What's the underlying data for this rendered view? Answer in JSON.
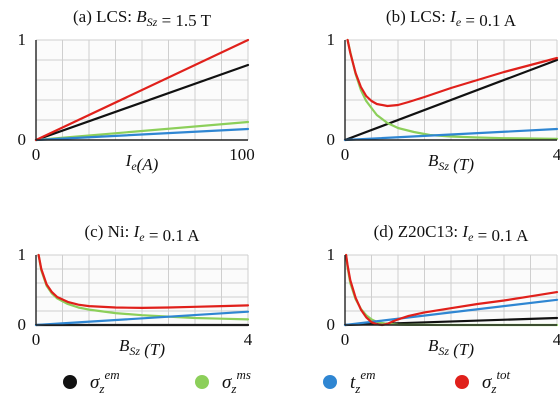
{
  "colors": {
    "sigma_em": "#111111",
    "sigma_ms": "#8ccf5a",
    "t_em": "#2f86d2",
    "sigma_tot": "#e0201b",
    "grid": "#cfcfcf"
  },
  "legend": {
    "position": "bottom",
    "items": [
      {
        "key": "sigma_em",
        "base": "σ",
        "sub": "z",
        "sup": "em"
      },
      {
        "key": "sigma_ms",
        "base": "σ",
        "sub": "z",
        "sup": "ms"
      },
      {
        "key": "t_em",
        "base": "t",
        "sub": "z",
        "sup": "em"
      },
      {
        "key": "sigma_tot",
        "base": "σ",
        "sub": "z",
        "sup": "tot"
      }
    ]
  },
  "chart_data": [
    {
      "type": "line",
      "title": "(a) LCS:  B_Sz = 1.5 T",
      "x_tick_labels": [
        "0",
        "100"
      ],
      "y_tick_labels": [
        "0",
        "1"
      ],
      "xlabel": "I_e(A)",
      "xlim": [
        0,
        100
      ],
      "ylim": [
        0,
        1
      ],
      "grid": true,
      "series": [
        {
          "key": "sigma_em",
          "x": [
            0,
            100
          ],
          "y": [
            0,
            0.75
          ]
        },
        {
          "key": "sigma_ms",
          "x": [
            0,
            100
          ],
          "y": [
            0,
            0.18
          ]
        },
        {
          "key": "t_em",
          "x": [
            0,
            100
          ],
          "y": [
            0,
            0.11
          ]
        },
        {
          "key": "sigma_tot",
          "x": [
            0,
            100
          ],
          "y": [
            0,
            1.0
          ]
        }
      ]
    },
    {
      "type": "line",
      "title": "(b) LCS: I_e = 0.1 A",
      "x_tick_labels": [
        "0",
        "4"
      ],
      "y_tick_labels": [
        "0",
        "1"
      ],
      "xlabel": "B_Sz (T)",
      "xlim": [
        0,
        4
      ],
      "ylim": [
        0,
        1
      ],
      "grid": true,
      "series": [
        {
          "key": "sigma_em",
          "x": [
            0,
            4
          ],
          "y": [
            0,
            0.8
          ]
        },
        {
          "key": "sigma_ms",
          "x": [
            0.05,
            0.1,
            0.2,
            0.3,
            0.4,
            0.6,
            0.8,
            1.0,
            1.3,
            1.6,
            2.0,
            2.5,
            3.0,
            3.5,
            4.0
          ],
          "y": [
            1.0,
            0.88,
            0.66,
            0.5,
            0.39,
            0.25,
            0.17,
            0.12,
            0.08,
            0.05,
            0.035,
            0.025,
            0.018,
            0.015,
            0.012
          ]
        },
        {
          "key": "t_em",
          "x": [
            0,
            4
          ],
          "y": [
            0,
            0.11
          ]
        },
        {
          "key": "sigma_tot",
          "x": [
            0.05,
            0.1,
            0.2,
            0.3,
            0.4,
            0.5,
            0.6,
            0.8,
            1.0,
            1.2,
            1.5,
            2.0,
            2.5,
            3.0,
            3.5,
            4.0
          ],
          "y": [
            1.0,
            0.87,
            0.67,
            0.53,
            0.44,
            0.39,
            0.36,
            0.34,
            0.35,
            0.38,
            0.43,
            0.52,
            0.6,
            0.68,
            0.75,
            0.82
          ]
        }
      ]
    },
    {
      "type": "line",
      "title": "(c) Ni: I_e = 0.1 A",
      "x_tick_labels": [
        "0",
        "4"
      ],
      "y_tick_labels": [
        "0",
        "1"
      ],
      "xlabel": "B_Sz (T)",
      "xlim": [
        0,
        4
      ],
      "ylim": [
        0,
        1
      ],
      "grid": true,
      "series": [
        {
          "key": "sigma_em",
          "x": [
            0,
            4
          ],
          "y": [
            0,
            0.0
          ]
        },
        {
          "key": "sigma_ms",
          "x": [
            0.05,
            0.1,
            0.2,
            0.3,
            0.4,
            0.6,
            0.8,
            1.0,
            1.5,
            2.0,
            2.5,
            3.0,
            3.5,
            4.0
          ],
          "y": [
            1.0,
            0.78,
            0.56,
            0.45,
            0.38,
            0.3,
            0.25,
            0.22,
            0.17,
            0.14,
            0.12,
            0.1,
            0.09,
            0.08
          ]
        },
        {
          "key": "t_em",
          "x": [
            0,
            4
          ],
          "y": [
            0,
            0.19
          ]
        },
        {
          "key": "sigma_tot",
          "x": [
            0.05,
            0.1,
            0.2,
            0.3,
            0.4,
            0.6,
            0.8,
            1.0,
            1.5,
            2.0,
            2.5,
            3.0,
            3.5,
            4.0
          ],
          "y": [
            1.0,
            0.8,
            0.58,
            0.47,
            0.4,
            0.33,
            0.29,
            0.27,
            0.25,
            0.245,
            0.25,
            0.26,
            0.27,
            0.28
          ]
        }
      ]
    },
    {
      "type": "line",
      "title": "(d) Z20C13: I_e = 0.1 A",
      "x_tick_labels": [
        "0",
        "4"
      ],
      "y_tick_labels": [
        "0",
        "1"
      ],
      "xlabel": "B_Sz (T)",
      "xlim": [
        0,
        4
      ],
      "ylim": [
        0,
        1
      ],
      "grid": true,
      "series": [
        {
          "key": "sigma_em",
          "x": [
            0,
            4
          ],
          "y": [
            0,
            0.1
          ]
        },
        {
          "key": "sigma_ms",
          "x": [
            0.02,
            0.05,
            0.1,
            0.2,
            0.3,
            0.4,
            0.5,
            0.6,
            0.8,
            1.0,
            1.2,
            1.5,
            2.0,
            2.5,
            3.0,
            3.5,
            4.0
          ],
          "y": [
            1.0,
            0.82,
            0.6,
            0.37,
            0.23,
            0.14,
            0.08,
            0.045,
            0.015,
            0.004,
            0.002,
            0.001,
            0.0005,
            0.0003,
            0.0002,
            0.0001,
            0.0001
          ]
        },
        {
          "key": "t_em",
          "x": [
            0,
            4
          ],
          "y": [
            0,
            0.36
          ]
        },
        {
          "key": "sigma_tot",
          "x": [
            0.02,
            0.05,
            0.1,
            0.2,
            0.3,
            0.4,
            0.5,
            0.6,
            0.7,
            0.8,
            0.9,
            1.0,
            1.2,
            1.5,
            2.0,
            2.5,
            3.0,
            3.5,
            4.0
          ],
          "y": [
            1.0,
            0.85,
            0.64,
            0.39,
            0.22,
            0.11,
            0.04,
            0.01,
            0.0,
            0.015,
            0.05,
            0.08,
            0.13,
            0.18,
            0.24,
            0.3,
            0.35,
            0.41,
            0.47
          ]
        }
      ]
    }
  ]
}
